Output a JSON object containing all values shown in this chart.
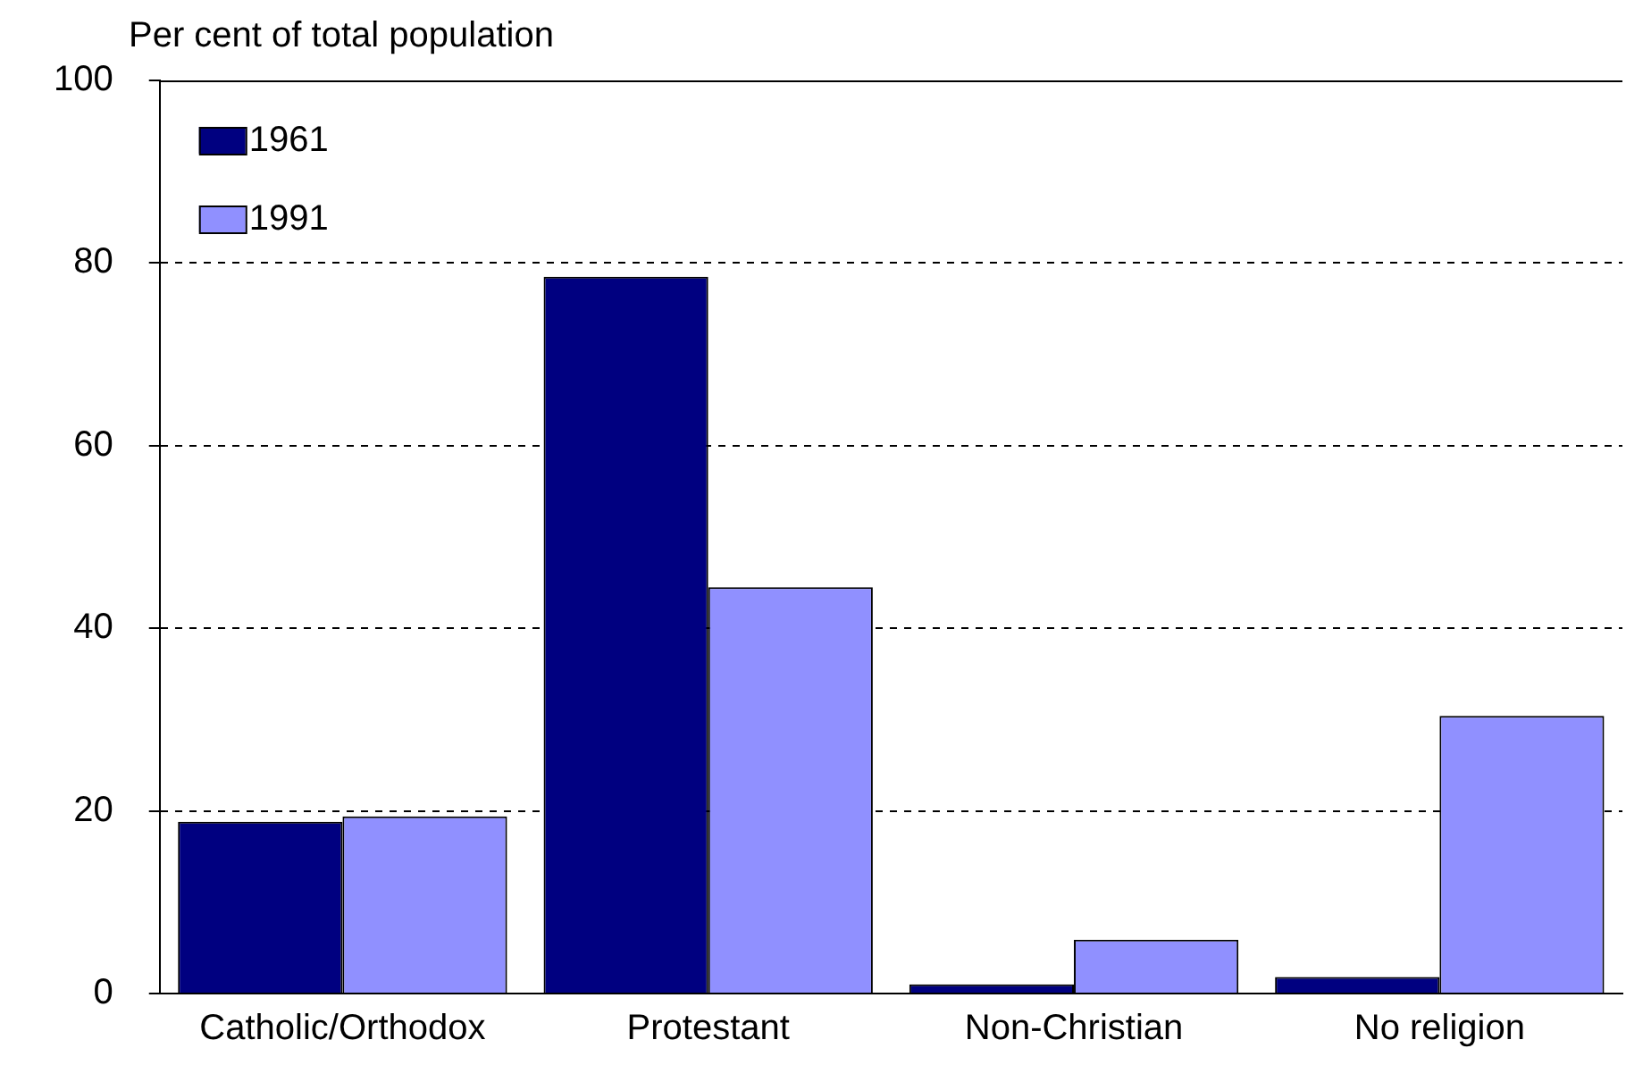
{
  "chart_data": {
    "type": "bar",
    "ylabel": "Per cent of total population",
    "categories": [
      "Catholic/Orthodox",
      "Protestant",
      "Non-Christian",
      "No religion"
    ],
    "series": [
      {
        "name": "1961",
        "color": "#000080",
        "values": [
          18.8,
          78.5,
          1.0,
          1.8
        ]
      },
      {
        "name": "1991",
        "color": "#9090ff",
        "values": [
          19.4,
          44.5,
          5.9,
          30.4
        ]
      }
    ],
    "ylim": [
      0,
      100
    ],
    "yticks": [
      0,
      20,
      40,
      60,
      80,
      100
    ],
    "grid": "y",
    "legend": "top left"
  }
}
